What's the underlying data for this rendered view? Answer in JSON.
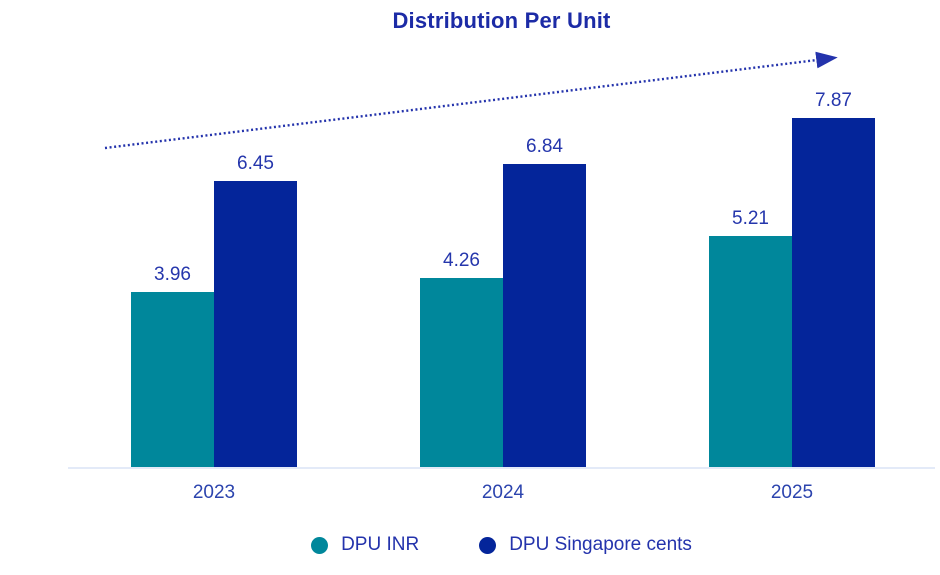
{
  "chart_data": {
    "type": "bar",
    "title": "Distribution Per Unit",
    "categories": [
      "2023",
      "2024",
      "2025"
    ],
    "series": [
      {
        "name": "DPU INR",
        "color": "#00879b",
        "values": [
          3.96,
          4.26,
          5.21
        ]
      },
      {
        "name": "DPU Singapore cents",
        "color": "#04259a",
        "values": [
          6.45,
          6.84,
          7.87
        ]
      }
    ],
    "ylim": [
      0,
      9
    ],
    "xlabel": "",
    "ylabel": "",
    "grid": false,
    "legend_position": "bottom",
    "annotations": [
      "dotted upward trend arrow across the top of the bars"
    ]
  },
  "colors": {
    "title_text": "#1c2ba6",
    "label_text": "#2536ac",
    "axis_line": "#e3eaf8",
    "trend_arrow": "#2433ac"
  }
}
